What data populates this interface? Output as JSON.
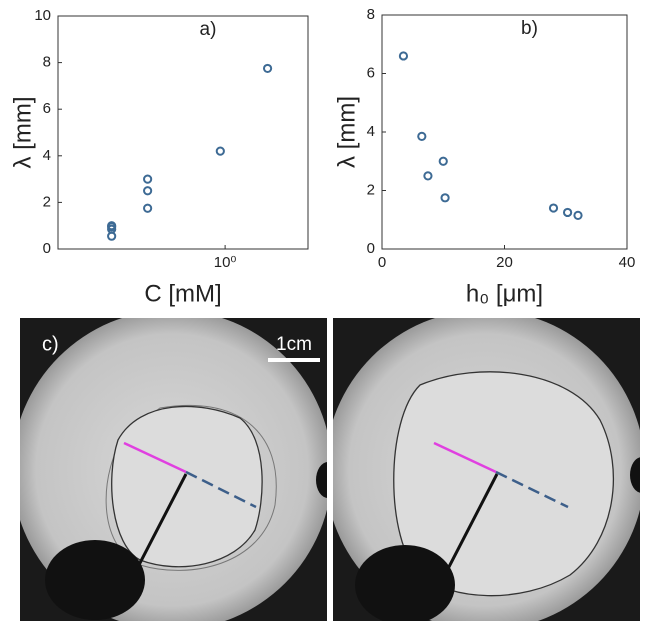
{
  "chart_data": [
    {
      "type": "scatter",
      "title": "a)",
      "xlabel": "C [mM]",
      "ylabel": "λ [mm]",
      "xscale": "log",
      "x": [
        0.18,
        0.18,
        0.18,
        0.18,
        0.31,
        0.31,
        0.31,
        0.93,
        1.9
      ],
      "values": [
        0.55,
        0.85,
        0.95,
        1.0,
        1.75,
        2.5,
        3.0,
        4.2,
        7.75
      ],
      "color": "#3d6a94",
      "xlim": [
        0.08,
        3.5
      ],
      "xticks": [
        {
          "value": 1,
          "label": "10⁰"
        }
      ],
      "ylim": [
        0,
        10
      ],
      "yticks": [
        0,
        2,
        4,
        6,
        8,
        10
      ]
    },
    {
      "type": "scatter",
      "title": "b)",
      "xlabel": "h₀ [μm]",
      "ylabel": "λ [mm]",
      "xscale": "linear",
      "x": [
        3.5,
        6.5,
        7.5,
        10,
        10.3,
        28,
        30.3,
        32
      ],
      "values": [
        6.6,
        3.85,
        2.5,
        3.0,
        1.75,
        1.4,
        1.25,
        1.15
      ],
      "color": "#3d6a94",
      "xlim": [
        0,
        40
      ],
      "xticks": [
        0,
        20,
        40
      ],
      "ylim": [
        0,
        8
      ],
      "yticks": [
        0,
        2,
        4,
        6,
        8
      ]
    }
  ],
  "panel_c": {
    "label": "c)",
    "scale_bar": "1cm"
  }
}
